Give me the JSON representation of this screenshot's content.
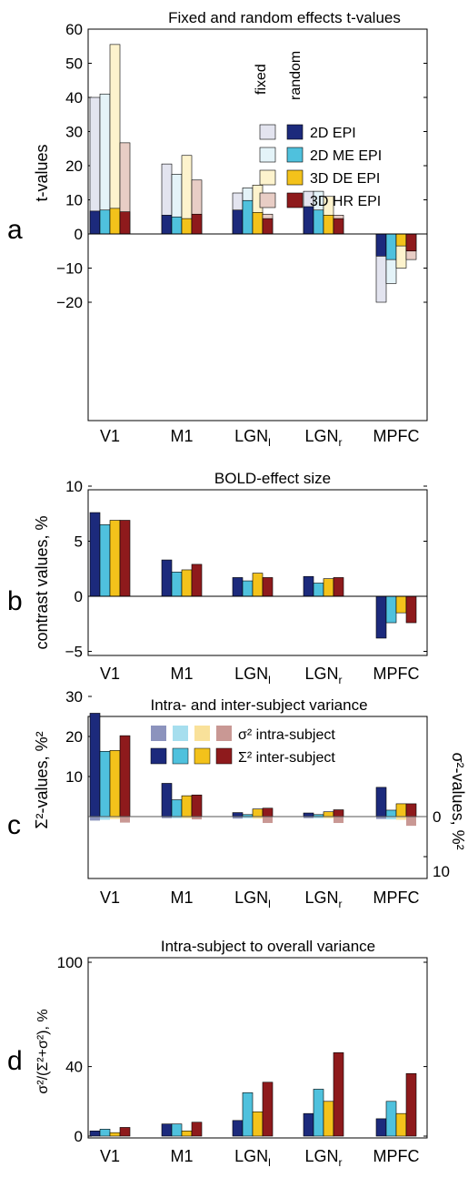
{
  "colors": {
    "epi2d": "#1c2a7c",
    "me2d": "#4fc1dd",
    "de3d": "#f3c21b",
    "hr3d": "#8e1a1c",
    "epi2d_light": "#e3e4ef",
    "me2d_light": "#e4f3f8",
    "de3d_light": "#fdf3cd",
    "hr3d_light": "#e8cdc5"
  },
  "chart_data": [
    {
      "panel": "a",
      "type": "bar",
      "title": "Fixed and random effects t-values",
      "ylabel": "t-values",
      "ylim": [
        -23,
        60
      ],
      "yticks": [
        "−20",
        "−10",
        "0",
        "10",
        "20",
        "30",
        "40",
        "50",
        "60"
      ],
      "categories": [
        "V1",
        "M1",
        "LGN",
        "LGN",
        "MPFC"
      ],
      "category_subscripts": [
        "",
        "",
        "l",
        "r",
        ""
      ],
      "legend_headers": [
        "fixed",
        "random"
      ],
      "series": [
        {
          "name": "2D EPI",
          "fixed": [
            40,
            20.5,
            12,
            12.5,
            -20
          ],
          "random": [
            6.7,
            5.5,
            7,
            8,
            -6.5
          ]
        },
        {
          "name": "2D ME EPI",
          "fixed": [
            41,
            17.5,
            13.5,
            12.5,
            -14.5
          ],
          "random": [
            7,
            5,
            9.8,
            7,
            -7.5
          ]
        },
        {
          "name": "3D DE EPI",
          "fixed": [
            55.5,
            23,
            14.3,
            11,
            -10
          ],
          "random": [
            7.5,
            4.5,
            6.3,
            5.5,
            -3.5
          ]
        },
        {
          "name": "3D HR EPI",
          "fixed": [
            26.7,
            15.8,
            5.8,
            5.5,
            -7.5
          ],
          "random": [
            6.5,
            5.8,
            4.5,
            4.5,
            -5
          ]
        }
      ]
    },
    {
      "panel": "b",
      "type": "bar",
      "title": "BOLD-effect size",
      "ylabel": "contrast values, %",
      "ylim": [
        -5,
        10
      ],
      "yticks": [
        "−5",
        "0",
        "5",
        "10"
      ],
      "categories": [
        "V1",
        "M1",
        "LGN",
        "LGN",
        "MPFC"
      ],
      "category_subscripts": [
        "",
        "",
        "l",
        "r",
        ""
      ],
      "series": [
        {
          "name": "2D EPI",
          "values": [
            7.6,
            3.3,
            1.7,
            1.8,
            -3.8
          ]
        },
        {
          "name": "2D ME EPI",
          "values": [
            6.5,
            2.2,
            1.4,
            1.2,
            -2.4
          ]
        },
        {
          "name": "3D DE EPI",
          "values": [
            6.9,
            2.4,
            2.1,
            1.6,
            -1.5
          ]
        },
        {
          "name": "3D HR EPI",
          "values": [
            6.9,
            2.9,
            1.7,
            1.7,
            -2.4
          ]
        }
      ]
    },
    {
      "panel": "c",
      "type": "bar",
      "title": "Intra- and inter-subject variance",
      "ylabel": "Σ²-values, %²",
      "ylabel_right": "σ²-values, %²",
      "ylim": [
        -10,
        30
      ],
      "yticks": [
        "10",
        "20",
        "30"
      ],
      "yticks_right": [
        "0",
        "10"
      ],
      "categories": [
        "V1",
        "M1",
        "LGN",
        "LGN",
        "MPFC"
      ],
      "category_subscripts": [
        "",
        "",
        "l",
        "r",
        ""
      ],
      "legend": [
        "σ² intra-subject",
        "Σ² inter-subject"
      ],
      "series": [
        {
          "name": "2D EPI",
          "inter": [
            25.8,
            8.3,
            1.0,
            0.9,
            7.3
          ],
          "intra": [
            1.0,
            0.4,
            0.5,
            0.4,
            0.6
          ]
        },
        {
          "name": "2D ME EPI",
          "inter": [
            16.3,
            4.2,
            0.5,
            0.5,
            1.6
          ],
          "intra": [
            0.8,
            0.4,
            0.4,
            0.4,
            0.7
          ]
        },
        {
          "name": "3D DE EPI",
          "inter": [
            16.5,
            5.2,
            1.9,
            1.2,
            3.2
          ],
          "intra": [
            0.6,
            0.4,
            0.5,
            0.4,
            0.8
          ]
        },
        {
          "name": "3D HR EPI",
          "inter": [
            20.2,
            5.4,
            2.1,
            1.7,
            3.2
          ],
          "intra": [
            1.5,
            0.7,
            1.6,
            1.6,
            2.3
          ]
        }
      ]
    },
    {
      "panel": "d",
      "type": "bar",
      "title": "Intra-subject to overall variance",
      "ylabel": "σ²/(Σ²+σ²), %",
      "ylim": [
        0,
        100
      ],
      "yticks": [
        "0",
        "40",
        "100"
      ],
      "categories": [
        "V1",
        "M1",
        "LGN",
        "LGN",
        "MPFC"
      ],
      "category_subscripts": [
        "",
        "",
        "l",
        "r",
        ""
      ],
      "series": [
        {
          "name": "2D EPI",
          "values": [
            3,
            7,
            9,
            13,
            10
          ]
        },
        {
          "name": "2D ME EPI",
          "values": [
            4,
            7,
            25,
            27,
            20
          ]
        },
        {
          "name": "3D DE EPI",
          "values": [
            2,
            3,
            14,
            20,
            13
          ]
        },
        {
          "name": "3D HR EPI",
          "values": [
            5,
            8,
            31,
            48,
            36
          ]
        }
      ]
    }
  ]
}
